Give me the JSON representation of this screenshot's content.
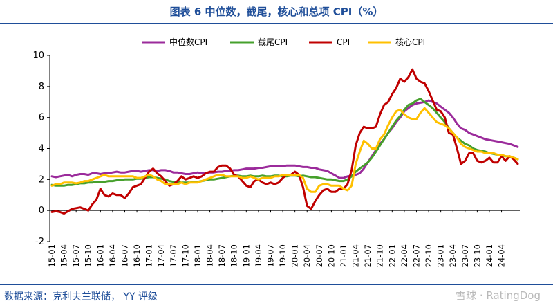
{
  "page": {
    "title": "图表 6 中位数，截尾，核心和总项 CPI（%）",
    "source": "数据来源：克利夫兰联储， YY 评级",
    "watermark": "雪球 · RatingDog"
  },
  "chart_data": {
    "type": "line",
    "title": "图表 6 中位数，截尾，核心和总项 CPI（%）",
    "xlabel": "",
    "ylabel": "",
    "ylim": [
      -2,
      10
    ],
    "yticks": [
      -2,
      0,
      2,
      4,
      6,
      8,
      10
    ],
    "x_start": "2015-01",
    "x_count": 116,
    "xticks": [
      "15-01",
      "15-04",
      "15-07",
      "15-10",
      "16-01",
      "16-04",
      "16-07",
      "16-10",
      "17-01",
      "17-04",
      "17-07",
      "17-10",
      "18-01",
      "18-04",
      "18-07",
      "18-10",
      "19-01",
      "19-04",
      "19-07",
      "19-10",
      "20-01",
      "20-04",
      "20-07",
      "20-10",
      "21-01",
      "21-04",
      "21-07",
      "21-10",
      "22-01",
      "22-04",
      "22-07",
      "22-10",
      "23-01",
      "23-04",
      "23-07",
      "23-10",
      "24-01",
      "24-04"
    ],
    "grid": false,
    "legend_position": "top",
    "series": [
      {
        "name": "中位数CPI",
        "color": "#9b2b9b",
        "values": [
          2.2,
          2.15,
          2.2,
          2.25,
          2.3,
          2.2,
          2.3,
          2.35,
          2.35,
          2.3,
          2.4,
          2.4,
          2.35,
          2.4,
          2.4,
          2.45,
          2.5,
          2.45,
          2.45,
          2.5,
          2.55,
          2.55,
          2.5,
          2.55,
          2.6,
          2.6,
          2.55,
          2.6,
          2.6,
          2.55,
          2.45,
          2.45,
          2.4,
          2.35,
          2.35,
          2.4,
          2.45,
          2.4,
          2.4,
          2.45,
          2.45,
          2.5,
          2.5,
          2.55,
          2.55,
          2.6,
          2.6,
          2.65,
          2.7,
          2.7,
          2.7,
          2.75,
          2.75,
          2.8,
          2.85,
          2.85,
          2.85,
          2.85,
          2.9,
          2.9,
          2.9,
          2.85,
          2.8,
          2.8,
          2.75,
          2.75,
          2.65,
          2.6,
          2.55,
          2.4,
          2.25,
          2.1,
          2.1,
          2.2,
          2.25,
          2.3,
          2.4,
          2.7,
          3.1,
          3.5,
          3.9,
          4.3,
          4.6,
          5.0,
          5.3,
          5.7,
          6.0,
          6.4,
          6.6,
          6.8,
          6.9,
          6.95,
          7.0,
          7.1,
          7.0,
          6.9,
          6.7,
          6.5,
          6.3,
          6.0,
          5.6,
          5.3,
          5.2,
          5.0,
          4.9,
          4.8,
          4.7,
          4.6,
          4.55,
          4.5,
          4.45,
          4.4,
          4.35,
          4.3,
          4.2,
          4.1
        ]
      },
      {
        "name": "截尾CPI",
        "color": "#46a02c",
        "values": [
          1.65,
          1.6,
          1.6,
          1.6,
          1.65,
          1.65,
          1.7,
          1.75,
          1.75,
          1.8,
          1.8,
          1.85,
          1.85,
          1.85,
          1.9,
          1.9,
          1.95,
          1.95,
          2.0,
          2.0,
          2.0,
          2.05,
          2.05,
          2.1,
          2.15,
          2.15,
          2.1,
          2.05,
          2.0,
          1.9,
          1.85,
          1.85,
          1.8,
          1.8,
          1.8,
          1.85,
          1.85,
          1.9,
          1.95,
          2.0,
          2.0,
          2.05,
          2.1,
          2.15,
          2.2,
          2.25,
          2.25,
          2.2,
          2.2,
          2.25,
          2.2,
          2.2,
          2.25,
          2.2,
          2.2,
          2.25,
          2.25,
          2.2,
          2.2,
          2.25,
          2.25,
          2.2,
          2.25,
          2.2,
          2.15,
          2.15,
          2.1,
          2.05,
          2.0,
          2.0,
          1.95,
          1.9,
          1.9,
          2.0,
          2.2,
          2.5,
          2.7,
          2.9,
          3.1,
          3.4,
          3.8,
          4.2,
          4.6,
          5.0,
          5.4,
          5.8,
          6.1,
          6.5,
          6.8,
          6.9,
          7.1,
          7.2,
          7.0,
          6.8,
          6.6,
          6.3,
          6.0,
          5.7,
          5.3,
          5.0,
          4.7,
          4.5,
          4.3,
          4.2,
          4.0,
          3.9,
          3.85,
          3.8,
          3.7,
          3.65,
          3.6,
          3.55,
          3.5,
          3.45,
          3.4,
          3.3
        ]
      },
      {
        "name": "CPI",
        "color": "#c00000",
        "values": [
          -0.1,
          -0.05,
          -0.1,
          -0.2,
          -0.05,
          0.1,
          0.15,
          0.2,
          0.1,
          0.0,
          0.4,
          0.7,
          1.4,
          1.0,
          0.9,
          1.1,
          1.0,
          1.0,
          0.8,
          1.1,
          1.5,
          1.6,
          1.7,
          2.1,
          2.5,
          2.7,
          2.4,
          2.2,
          1.9,
          1.6,
          1.7,
          1.9,
          2.2,
          2.0,
          2.1,
          2.2,
          2.1,
          2.2,
          2.4,
          2.5,
          2.5,
          2.8,
          2.9,
          2.9,
          2.7,
          2.3,
          2.2,
          1.9,
          1.6,
          1.5,
          1.9,
          2.0,
          1.8,
          1.7,
          1.8,
          1.7,
          1.8,
          2.1,
          2.3,
          2.3,
          2.5,
          2.3,
          1.5,
          0.3,
          0.1,
          0.6,
          1.0,
          1.3,
          1.4,
          1.2,
          1.2,
          1.4,
          1.4,
          1.7,
          2.6,
          4.2,
          5.0,
          5.4,
          5.3,
          5.3,
          5.4,
          6.2,
          6.8,
          7.0,
          7.5,
          7.9,
          8.5,
          8.3,
          8.6,
          9.1,
          8.5,
          8.3,
          8.2,
          7.7,
          7.1,
          6.5,
          6.4,
          6.0,
          5.0,
          4.9,
          4.0,
          3.0,
          3.2,
          3.7,
          3.7,
          3.2,
          3.1,
          3.2,
          3.4,
          3.1,
          3.1,
          3.5,
          3.2,
          3.5,
          3.3,
          3.0
        ]
      },
      {
        "name": "核心CPI",
        "color": "#ffc000",
        "values": [
          1.6,
          1.7,
          1.7,
          1.8,
          1.8,
          1.8,
          1.75,
          1.8,
          1.9,
          1.9,
          2.0,
          2.1,
          2.2,
          2.3,
          2.2,
          2.2,
          2.2,
          2.2,
          2.2,
          2.2,
          2.2,
          2.1,
          2.1,
          2.2,
          2.3,
          2.2,
          2.0,
          1.9,
          1.7,
          1.7,
          1.7,
          1.7,
          1.8,
          1.7,
          1.8,
          1.8,
          1.8,
          1.9,
          2.0,
          2.1,
          2.2,
          2.3,
          2.3,
          2.2,
          2.2,
          2.2,
          2.2,
          2.1,
          2.1,
          2.2,
          2.1,
          2.0,
          2.1,
          2.1,
          2.1,
          2.2,
          2.2,
          2.3,
          2.3,
          2.3,
          2.3,
          2.3,
          2.1,
          1.4,
          1.2,
          1.2,
          1.6,
          1.7,
          1.7,
          1.6,
          1.6,
          1.6,
          1.4,
          1.3,
          1.6,
          3.0,
          3.8,
          4.5,
          4.3,
          4.0,
          4.0,
          4.6,
          4.9,
          5.5,
          6.0,
          6.4,
          6.5,
          6.2,
          6.0,
          5.9,
          5.9,
          6.3,
          6.6,
          6.3,
          6.0,
          5.7,
          5.6,
          5.5,
          5.3,
          5.0,
          4.7,
          4.3,
          4.1,
          4.0,
          3.9,
          3.8,
          3.8,
          3.7,
          3.7,
          3.7,
          3.6,
          3.6,
          3.5,
          3.5,
          3.4,
          3.3
        ]
      }
    ]
  }
}
